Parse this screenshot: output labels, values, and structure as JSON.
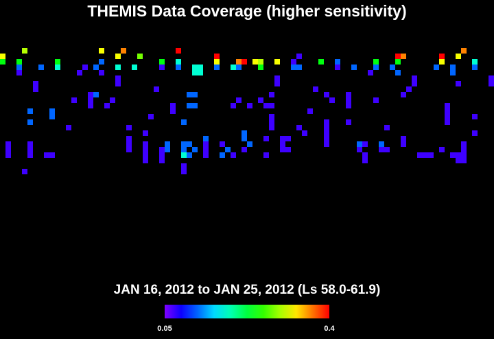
{
  "title": "THEMIS Data Coverage (higher sensitivity)",
  "subtitle": "JAN 16, 2012 to JAN 25, 2012 (Ls 58.0-61.9)",
  "map": {
    "type": "grid",
    "cells": [
      [
        4,
        0,
        0.3
      ],
      [
        18,
        0,
        0.32
      ],
      [
        22,
        0,
        0.36
      ],
      [
        32,
        0,
        0.4
      ],
      [
        84,
        0,
        0.36
      ],
      [
        0,
        1,
        0.32
      ],
      [
        21,
        1,
        0.32
      ],
      [
        25,
        1,
        0.28
      ],
      [
        39,
        1,
        0.4
      ],
      [
        54,
        1,
        0.07
      ],
      [
        72,
        1,
        0.4
      ],
      [
        73,
        1,
        0.36
      ],
      [
        80,
        1,
        0.4
      ],
      [
        83,
        1,
        0.32
      ],
      [
        0,
        2,
        0.24
      ],
      [
        3,
        2,
        0.24
      ],
      [
        10,
        2,
        0.24
      ],
      [
        18,
        2,
        0.12
      ],
      [
        29,
        2,
        0.24
      ],
      [
        32,
        2,
        0.18
      ],
      [
        39,
        2,
        0.32
      ],
      [
        43,
        2,
        0.36
      ],
      [
        44,
        2,
        0.4
      ],
      [
        46,
        2,
        0.32
      ],
      [
        47,
        2,
        0.3
      ],
      [
        50,
        2,
        0.32
      ],
      [
        53,
        2,
        0.07
      ],
      [
        58,
        2,
        0.24
      ],
      [
        61,
        2,
        0.12
      ],
      [
        68,
        2,
        0.24
      ],
      [
        72,
        2,
        0.24
      ],
      [
        80,
        2,
        0.32
      ],
      [
        86,
        2,
        0.18
      ],
      [
        3,
        3,
        0.12
      ],
      [
        7,
        3,
        0.12
      ],
      [
        10,
        3,
        0.18
      ],
      [
        15,
        3,
        0.07
      ],
      [
        17,
        3,
        0.12
      ],
      [
        21,
        3,
        0.18
      ],
      [
        24,
        3,
        0.18
      ],
      [
        29,
        3,
        0.07
      ],
      [
        32,
        3,
        0.12
      ],
      [
        35,
        3,
        0.18
      ],
      [
        36,
        3,
        0.18
      ],
      [
        39,
        3,
        0.12
      ],
      [
        42,
        3,
        0.18
      ],
      [
        43,
        3,
        0.12
      ],
      [
        47,
        3,
        0.24
      ],
      [
        53,
        3,
        0.12
      ],
      [
        54,
        3,
        0.12
      ],
      [
        61,
        3,
        0.07
      ],
      [
        64,
        3,
        0.12
      ],
      [
        68,
        3,
        0.12
      ],
      [
        71,
        3,
        0.12
      ],
      [
        79,
        3,
        0.12
      ],
      [
        82,
        3,
        0.12
      ],
      [
        86,
        3,
        0.12
      ],
      [
        3,
        4,
        0.07
      ],
      [
        14,
        4,
        0.07
      ],
      [
        18,
        4,
        0.07
      ],
      [
        35,
        4,
        0.18
      ],
      [
        36,
        4,
        0.18
      ],
      [
        67,
        4,
        0.07
      ],
      [
        72,
        4,
        0.12
      ],
      [
        82,
        4,
        0.12
      ],
      [
        21,
        5,
        0.07
      ],
      [
        50,
        5,
        0.07
      ],
      [
        75,
        5,
        0.07
      ],
      [
        89,
        5,
        0.07
      ],
      [
        6,
        6,
        0.07
      ],
      [
        21,
        6,
        0.07
      ],
      [
        50,
        6,
        0.07
      ],
      [
        75,
        6,
        0.07
      ],
      [
        83,
        6,
        0.07
      ],
      [
        89,
        6,
        0.07
      ],
      [
        6,
        7,
        0.07
      ],
      [
        28,
        7,
        0.07
      ],
      [
        57,
        7,
        0.07
      ],
      [
        74,
        7,
        0.07
      ],
      [
        16,
        8,
        0.07
      ],
      [
        17,
        8,
        0.12
      ],
      [
        34,
        8,
        0.12
      ],
      [
        35,
        8,
        0.12
      ],
      [
        49,
        8,
        0.07
      ],
      [
        59,
        8,
        0.07
      ],
      [
        63,
        8,
        0.07
      ],
      [
        73,
        8,
        0.07
      ],
      [
        13,
        9,
        0.07
      ],
      [
        16,
        9,
        0.07
      ],
      [
        20,
        9,
        0.07
      ],
      [
        43,
        9,
        0.07
      ],
      [
        47,
        9,
        0.07
      ],
      [
        60,
        9,
        0.07
      ],
      [
        63,
        9,
        0.07
      ],
      [
        68,
        9,
        0.07
      ],
      [
        16,
        10,
        0.07
      ],
      [
        19,
        10,
        0.07
      ],
      [
        31,
        10,
        0.07
      ],
      [
        34,
        10,
        0.12
      ],
      [
        35,
        10,
        0.12
      ],
      [
        42,
        10,
        0.07
      ],
      [
        45,
        10,
        0.07
      ],
      [
        48,
        10,
        0.07
      ],
      [
        49,
        10,
        0.07
      ],
      [
        63,
        10,
        0.07
      ],
      [
        81,
        10,
        0.07
      ],
      [
        5,
        11,
        0.12
      ],
      [
        9,
        11,
        0.12
      ],
      [
        31,
        11,
        0.07
      ],
      [
        56,
        11,
        0.07
      ],
      [
        81,
        11,
        0.07
      ],
      [
        9,
        12,
        0.12
      ],
      [
        27,
        12,
        0.07
      ],
      [
        49,
        12,
        0.07
      ],
      [
        81,
        12,
        0.07
      ],
      [
        86,
        12,
        0.07
      ],
      [
        5,
        13,
        0.12
      ],
      [
        33,
        13,
        0.12
      ],
      [
        49,
        13,
        0.07
      ],
      [
        59,
        13,
        0.07
      ],
      [
        63,
        13,
        0.07
      ],
      [
        81,
        13,
        0.07
      ],
      [
        12,
        14,
        0.07
      ],
      [
        23,
        14,
        0.07
      ],
      [
        49,
        14,
        0.07
      ],
      [
        54,
        14,
        0.07
      ],
      [
        59,
        14,
        0.07
      ],
      [
        70,
        14,
        0.07
      ],
      [
        26,
        15,
        0.07
      ],
      [
        44,
        15,
        0.12
      ],
      [
        55,
        15,
        0.07
      ],
      [
        59,
        15,
        0.07
      ],
      [
        86,
        15,
        0.07
      ],
      [
        23,
        16,
        0.07
      ],
      [
        37,
        16,
        0.12
      ],
      [
        44,
        16,
        0.12
      ],
      [
        48,
        16,
        0.07
      ],
      [
        51,
        16,
        0.07
      ],
      [
        52,
        16,
        0.07
      ],
      [
        59,
        16,
        0.07
      ],
      [
        73,
        16,
        0.07
      ],
      [
        1,
        17,
        0.07
      ],
      [
        5,
        17,
        0.07
      ],
      [
        23,
        17,
        0.07
      ],
      [
        26,
        17,
        0.07
      ],
      [
        30,
        17,
        0.12
      ],
      [
        33,
        17,
        0.12
      ],
      [
        34,
        17,
        0.12
      ],
      [
        37,
        17,
        0.07
      ],
      [
        40,
        17,
        0.07
      ],
      [
        45,
        17,
        0.12
      ],
      [
        51,
        17,
        0.07
      ],
      [
        59,
        17,
        0.07
      ],
      [
        65,
        17,
        0.12
      ],
      [
        66,
        17,
        0.07
      ],
      [
        69,
        17,
        0.12
      ],
      [
        73,
        17,
        0.07
      ],
      [
        84,
        17,
        0.07
      ],
      [
        1,
        18,
        0.07
      ],
      [
        5,
        18,
        0.07
      ],
      [
        23,
        18,
        0.07
      ],
      [
        26,
        18,
        0.07
      ],
      [
        29,
        18,
        0.07
      ],
      [
        30,
        18,
        0.12
      ],
      [
        33,
        18,
        0.12
      ],
      [
        35,
        18,
        0.12
      ],
      [
        37,
        18,
        0.07
      ],
      [
        41,
        18,
        0.12
      ],
      [
        44,
        18,
        0.07
      ],
      [
        51,
        18,
        0.07
      ],
      [
        52,
        18,
        0.07
      ],
      [
        65,
        18,
        0.07
      ],
      [
        69,
        18,
        0.07
      ],
      [
        70,
        18,
        0.07
      ],
      [
        80,
        18,
        0.07
      ],
      [
        84,
        18,
        0.07
      ],
      [
        1,
        19,
        0.07
      ],
      [
        5,
        19,
        0.07
      ],
      [
        8,
        19,
        0.07
      ],
      [
        9,
        19,
        0.07
      ],
      [
        26,
        19,
        0.07
      ],
      [
        29,
        19,
        0.07
      ],
      [
        33,
        19,
        0.18
      ],
      [
        34,
        19,
        0.12
      ],
      [
        37,
        19,
        0.07
      ],
      [
        40,
        19,
        0.12
      ],
      [
        42,
        19,
        0.07
      ],
      [
        48,
        19,
        0.07
      ],
      [
        66,
        19,
        0.07
      ],
      [
        76,
        19,
        0.07
      ],
      [
        77,
        19,
        0.07
      ],
      [
        78,
        19,
        0.07
      ],
      [
        82,
        19,
        0.07
      ],
      [
        83,
        19,
        0.07
      ],
      [
        84,
        19,
        0.07
      ],
      [
        26,
        20,
        0.07
      ],
      [
        29,
        20,
        0.07
      ],
      [
        66,
        20,
        0.07
      ],
      [
        83,
        20,
        0.07
      ],
      [
        84,
        20,
        0.07
      ],
      [
        33,
        21,
        0.07
      ],
      [
        4,
        22,
        0.07
      ],
      [
        33,
        22,
        0.07
      ]
    ]
  },
  "colorbar": {
    "min": 0.05,
    "max": 0.4
  }
}
